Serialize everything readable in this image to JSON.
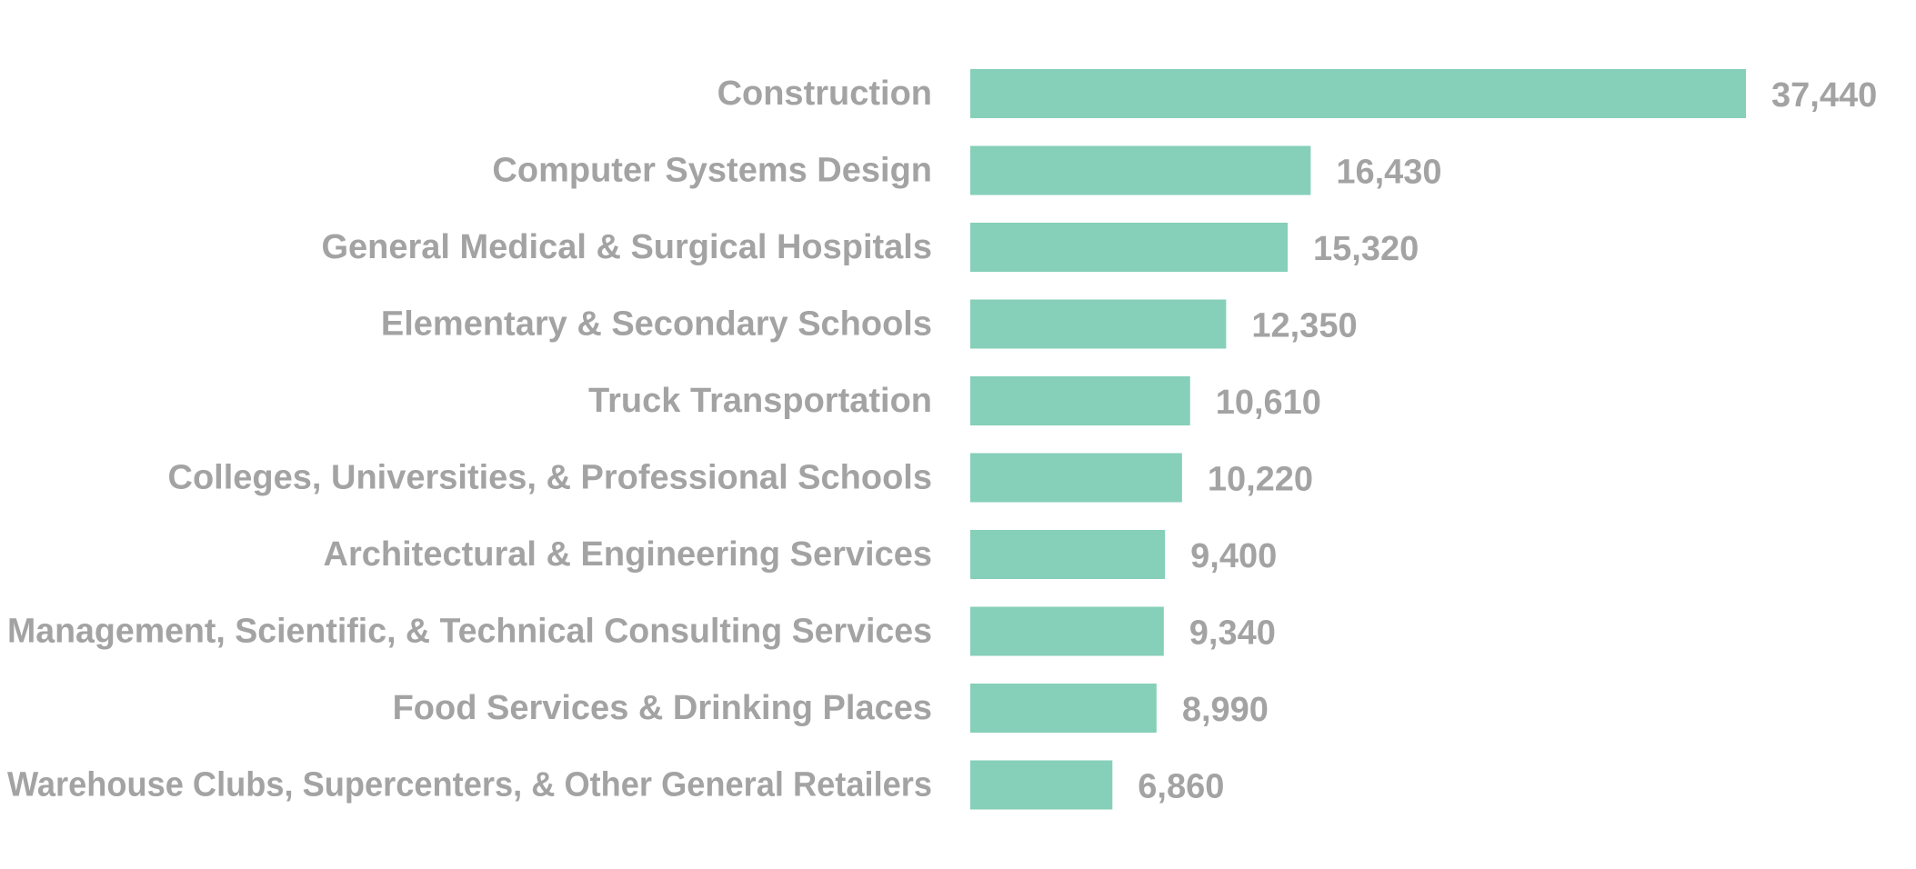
{
  "chart_data": {
    "type": "bar",
    "orientation": "horizontal",
    "title": "",
    "xlabel": "",
    "ylabel": "",
    "grid": false,
    "xlim": [
      0,
      37440
    ],
    "bar_color": "#86cfb8",
    "label_color": "#a3a3a3",
    "categories": [
      "Construction",
      "Computer Systems Design",
      "General Medical & Surgical Hospitals",
      "Elementary & Secondary Schools",
      "Truck Transportation",
      "Colleges, Universities, & Professional Schools",
      "Architectural & Engineering Services",
      "Management, Scientific, & Technical Consulting Services",
      "Food Services & Drinking Places",
      "Warehouse Clubs, Supercenters, & Other General Retailers"
    ],
    "values": [
      37440,
      16430,
      15320,
      12350,
      10610,
      10220,
      9400,
      9340,
      8990,
      6860
    ],
    "value_labels": [
      "37,440",
      "16,430",
      "15,320",
      "12,350",
      "10,610",
      "10,220",
      "9,400",
      "9,340",
      "8,990",
      "6,860"
    ]
  }
}
